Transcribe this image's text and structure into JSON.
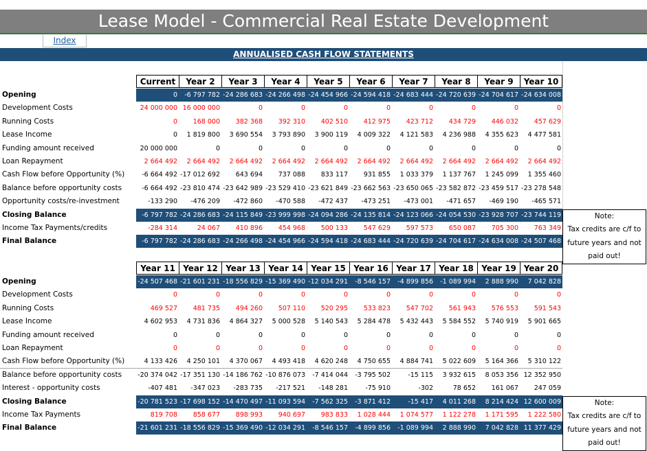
{
  "title": "Lease Model - Commercial Real Estate Development",
  "index_link": "Index",
  "section_title": "ANNUALISED CASH FLOW STATEMENTS",
  "table1": {
    "headers": [
      "Current",
      "Year 2",
      "Year 3",
      "Year 4",
      "Year 5",
      "Year 6",
      "Year 7",
      "Year 8",
      "Year 9",
      "Year 10"
    ],
    "rows": [
      {
        "label": "Opening",
        "style": "blue",
        "values": [
          "0",
          "-6 797 782",
          "-24 286 683",
          "-24 266 498",
          "-24 454 966",
          "-24 594 418",
          "-24 683 444",
          "-24 720 639",
          "-24 704 617",
          "-24 634 008"
        ]
      },
      {
        "label": "Development Costs",
        "style": "red",
        "values": [
          "24 000 000",
          "16 000 000",
          "0",
          "0",
          "0",
          "0",
          "0",
          "0",
          "0",
          "0"
        ]
      },
      {
        "label": "Running Costs",
        "style": "red",
        "values": [
          "0",
          "168 000",
          "382 368",
          "392 310",
          "402 510",
          "412 975",
          "423 712",
          "434 729",
          "446 032",
          "457 629"
        ]
      },
      {
        "label": "Lease Income",
        "style": "black",
        "values": [
          "0",
          "1 819 800",
          "3 690 554",
          "3 793 890",
          "3 900 119",
          "4 009 322",
          "4 121 583",
          "4 236 988",
          "4 355 623",
          "4 477 581"
        ]
      },
      {
        "label": "Funding amount received",
        "style": "black",
        "values": [
          "20 000 000",
          "0",
          "0",
          "0",
          "0",
          "0",
          "0",
          "0",
          "0",
          "0"
        ]
      },
      {
        "label": "Loan Repayment",
        "style": "red",
        "values": [
          "2 664 492",
          "2 664 492",
          "2 664 492",
          "2 664 492",
          "2 664 492",
          "2 664 492",
          "2 664 492",
          "2 664 492",
          "2 664 492",
          "2 664 492"
        ]
      },
      {
        "label": "Cash Flow before Opportunity (%)",
        "style": "black",
        "values": [
          "-6 664 492",
          "-17 012 692",
          "643 694",
          "737 088",
          "833 117",
          "931 855",
          "1 033 379",
          "1 137 767",
          "1 245 099",
          "1 355 460"
        ]
      },
      {
        "label": "Balance before opportunity costs",
        "style": "black",
        "values": [
          "-6 664 492",
          "-23 810 474",
          "-23 642 989",
          "-23 529 410",
          "-23 621 849",
          "-23 662 563",
          "-23 650 065",
          "-23 582 872",
          "-23 459 517",
          "-23 278 548"
        ]
      },
      {
        "label": "Opportunity costs/re-investment",
        "style": "black",
        "values": [
          "-133 290",
          "-476 209",
          "-472 860",
          "-470 588",
          "-472 437",
          "-473 251",
          "-473 001",
          "-471 657",
          "-469 190",
          "-465 571"
        ]
      },
      {
        "label": "Closing Balance",
        "style": "blue",
        "values": [
          "-6 797 782",
          "-24 286 683",
          "-24 115 849",
          "-23 999 998",
          "-24 094 286",
          "-24 135 814",
          "-24 123 066",
          "-24 054 530",
          "-23 928 707",
          "-23 744 119"
        ]
      },
      {
        "label": "Income Tax Payments/credits",
        "style": "red",
        "values": [
          "-284 314",
          "24 067",
          "410 896",
          "454 968",
          "500 133",
          "547 629",
          "597 573",
          "650 087",
          "705 300",
          "763 349"
        ]
      },
      {
        "label": "Final Balance",
        "style": "blue",
        "values": [
          "-6 797 782",
          "-24 286 683",
          "-24 266 498",
          "-24 454 966",
          "-24 594 418",
          "-24 683 444",
          "-24 720 639",
          "-24 704 617",
          "-24 634 008",
          "-24 507 468"
        ]
      }
    ],
    "note": [
      "Note:",
      "Tax credits are c/f to",
      "future years and not",
      "paid out!"
    ]
  },
  "table2": {
    "headers": [
      "Year 11",
      "Year 12",
      "Year 13",
      "Year 14",
      "Year 15",
      "Year 16",
      "Year 17",
      "Year 18",
      "Year 19",
      "Year 20"
    ],
    "rows": [
      {
        "label": "Opening",
        "style": "blue",
        "values": [
          "-24 507 468",
          "-21 601 231",
          "-18 556 829",
          "-15 369 490",
          "-12 034 291",
          "-8 546 157",
          "-4 899 856",
          "-1 089 994",
          "2 888 990",
          "7 042 828"
        ]
      },
      {
        "label": "Development Costs",
        "style": "red",
        "values": [
          "0",
          "0",
          "0",
          "0",
          "0",
          "0",
          "0",
          "0",
          "0",
          "0"
        ]
      },
      {
        "label": "Running Costs",
        "style": "red",
        "values": [
          "469 527",
          "481 735",
          "494 260",
          "507 110",
          "520 295",
          "533 823",
          "547 702",
          "561 943",
          "576 553",
          "591 543"
        ]
      },
      {
        "label": "Lease Income",
        "style": "black",
        "values": [
          "4 602 953",
          "4 731 836",
          "4 864 327",
          "5 000 528",
          "5 140 543",
          "5 284 478",
          "5 432 443",
          "5 584 552",
          "5 740 919",
          "5 901 665"
        ]
      },
      {
        "label": "Funding amount received",
        "style": "black",
        "values": [
          "0",
          "0",
          "0",
          "0",
          "0",
          "0",
          "0",
          "0",
          "0",
          "0"
        ]
      },
      {
        "label": "Loan Repayment",
        "style": "red",
        "values": [
          "0",
          "0",
          "0",
          "0",
          "0",
          "0",
          "0",
          "0",
          "0",
          "0"
        ]
      },
      {
        "label": "Cash Flow before Opportunity (%)",
        "style": "black",
        "values": [
          "4 133 426",
          "4 250 101",
          "4 370 067",
          "4 493 418",
          "4 620 248",
          "4 750 655",
          "4 884 741",
          "5 022 609",
          "5 164 366",
          "5 310 122"
        ]
      },
      {
        "label": "Balance before opportunity costs",
        "style": "black",
        "values": [
          "-20 374 042",
          "-17 351 130",
          "-14 186 762",
          "-10 876 073",
          "-7 414 044",
          "-3 795 502",
          "-15 115",
          "3 932 615",
          "8 053 356",
          "12 352 950"
        ]
      },
      {
        "label": "Interest - opportunity costs",
        "style": "black",
        "values": [
          "-407 481",
          "-347 023",
          "-283 735",
          "-217 521",
          "-148 281",
          "-75 910",
          "-302",
          "78 652",
          "161 067",
          "247 059"
        ]
      },
      {
        "label": "Closing Balance",
        "style": "blue",
        "values": [
          "-20 781 523",
          "-17 698 152",
          "-14 470 497",
          "-11 093 594",
          "-7 562 325",
          "-3 871 412",
          "-15 417",
          "4 011 268",
          "8 214 424",
          "12 600 009"
        ]
      },
      {
        "label": "Income Tax Payments",
        "style": "red",
        "values": [
          "819 708",
          "858 677",
          "898 993",
          "940 697",
          "983 833",
          "1 028 444",
          "1 074 577",
          "1 122 278",
          "1 171 595",
          "1 222 580"
        ]
      },
      {
        "label": "Final Balance",
        "style": "blue",
        "values": [
          "-21 601 231",
          "-18 556 829",
          "-15 369 490",
          "-12 034 291",
          "-8 546 157",
          "-4 899 856",
          "-1 089 994",
          "2 888 990",
          "7 042 828",
          "11 377 429"
        ]
      }
    ],
    "note": [
      "Note:",
      "Tax credits are c/f to",
      "future years and not",
      "paid out!"
    ]
  },
  "colors": {
    "title_bg": "#7f7f7f",
    "header_blue": "#1f4e79",
    "negative_red": "#ff0000",
    "accent_green": "#2e7d32"
  }
}
